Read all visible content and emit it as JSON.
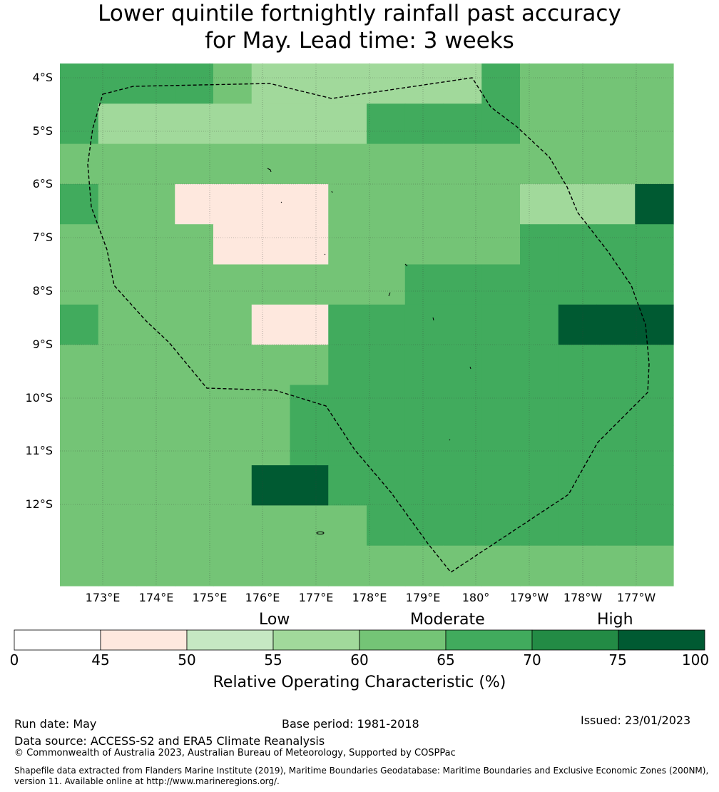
{
  "title": {
    "line1": "Lower quintile fortnightly rainfall past accuracy",
    "line2": "for May. Lead time: 3 weeks"
  },
  "map": {
    "lat_labels": [
      "4°S",
      "5°S",
      "6°S",
      "7°S",
      "8°S",
      "9°S",
      "10°S",
      "11°S",
      "12°S"
    ],
    "lon_labels": [
      "173°E",
      "174°E",
      "175°E",
      "176°E",
      "177°E",
      "178°E",
      "179°E",
      "180°",
      "179°W",
      "178°W",
      "177°W"
    ],
    "grid_rows": [
      "4444355555543333",
      "4555555544443333",
      "3333333333333333",
      "4332222333335550",
      "3333222333334444",
      "3333333334444444",
      "4333322444444000",
      "3333333444444444",
      "3333334444444444",
      "3333334444444444",
      "3333300444444444",
      "3333333344444444",
      "3333333333333333"
    ],
    "colors": {
      "45-50": "#fee8de",
      "50-55": "#c6e8c3",
      "55-60": "#a1d99b",
      "60-65": "#74c476",
      "65-70": "#41ab5d",
      "70-75": "#238b45",
      "75-100": "#005a32",
      "boundary": "#000000",
      "gridline": "#3a3a3a"
    }
  },
  "legend": {
    "category_low": "Low",
    "category_moderate": "Moderate",
    "category_high": "High",
    "ticks": [
      "0",
      "45",
      "50",
      "55",
      "60",
      "65",
      "70",
      "75",
      "100"
    ],
    "title": "Relative Operating Characteristic (%)"
  },
  "footer": {
    "run_date": "Run date: May",
    "base_period": "Base period: 1981-2018",
    "issued": "Issued: 23/01/2023",
    "data_source": "Data source: ACCESS-S2 and ERA5 Climate Reanalysis",
    "copyright": "© Commonwealth of Australia 2023, Australian Bureau of Meteorology, Supported by COSPPac",
    "shapefile_line1": "Shapefile data extracted from Flanders Marine Institute (2019), Maritime Boundaries Geodatabase: Maritime Boundaries and Exclusive Economic Zones (200NM),",
    "shapefile_line2": "version 11. Available online at http://www.marineregions.org/."
  }
}
